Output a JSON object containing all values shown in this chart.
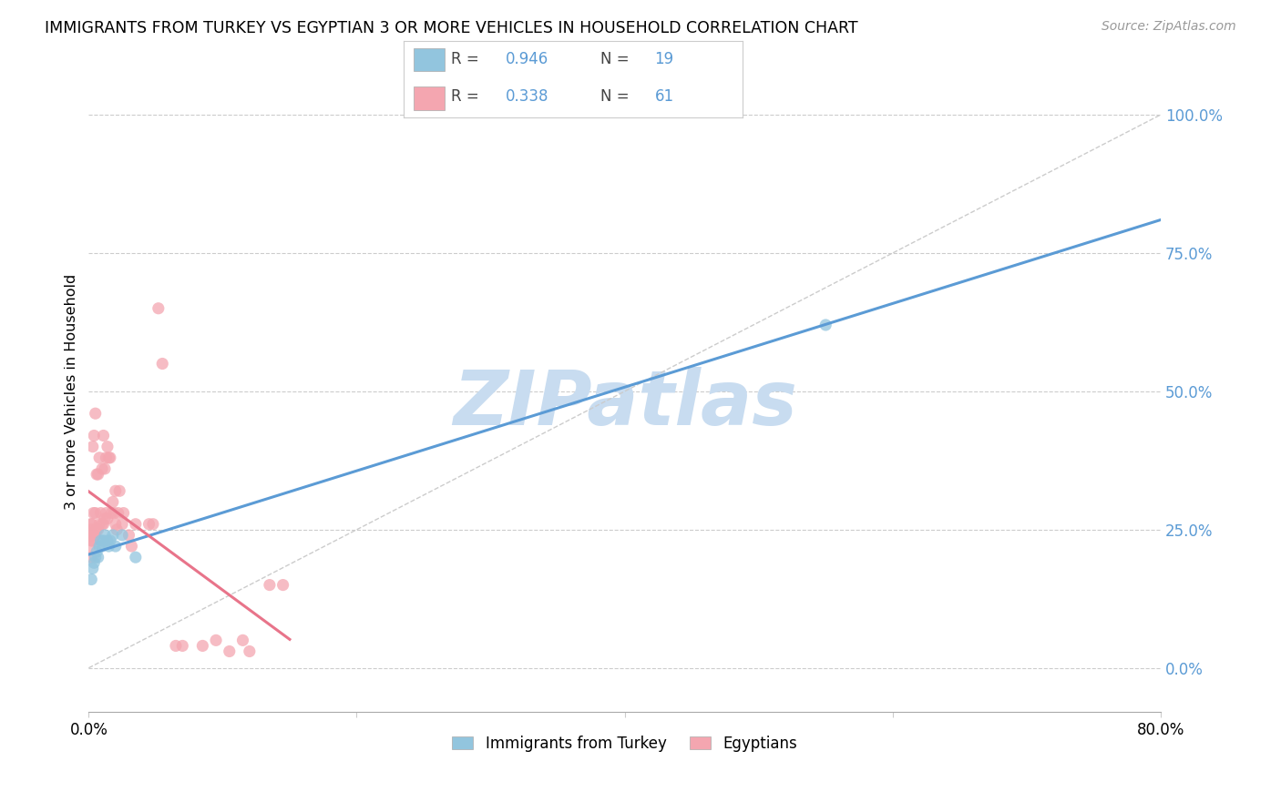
{
  "title": "IMMIGRANTS FROM TURKEY VS EGYPTIAN 3 OR MORE VEHICLES IN HOUSEHOLD CORRELATION CHART",
  "source": "Source: ZipAtlas.com",
  "ylabel": "3 or more Vehicles in Household",
  "y_ticks": [
    0.0,
    25.0,
    50.0,
    75.0,
    100.0
  ],
  "xlim": [
    0.0,
    80.0
  ],
  "ylim": [
    -8.0,
    108.0
  ],
  "turkey_R": 0.946,
  "turkey_N": 19,
  "egypt_R": 0.338,
  "egypt_N": 61,
  "turkey_color": "#92C5DE",
  "egypt_color": "#F4A6B0",
  "turkey_line_color": "#5B9BD5",
  "egypt_line_color": "#E8748A",
  "watermark": "ZIPatlas",
  "watermark_color": "#C8DCF0",
  "turkey_x": [
    0.2,
    0.3,
    0.4,
    0.5,
    0.6,
    0.7,
    0.8,
    0.9,
    1.0,
    1.1,
    1.2,
    1.4,
    1.5,
    1.6,
    1.8,
    2.0,
    2.5,
    3.5,
    55.0
  ],
  "turkey_y": [
    16.0,
    18.0,
    19.0,
    20.0,
    21.0,
    20.0,
    22.0,
    23.0,
    22.0,
    23.0,
    24.0,
    23.0,
    22.0,
    23.0,
    24.0,
    22.0,
    24.0,
    20.0,
    62.0
  ],
  "egypt_x": [
    0.1,
    0.1,
    0.15,
    0.15,
    0.2,
    0.2,
    0.25,
    0.3,
    0.3,
    0.3,
    0.35,
    0.4,
    0.4,
    0.5,
    0.5,
    0.5,
    0.6,
    0.6,
    0.7,
    0.7,
    0.8,
    0.8,
    0.9,
    1.0,
    1.0,
    1.1,
    1.1,
    1.2,
    1.2,
    1.3,
    1.3,
    1.4,
    1.4,
    1.5,
    1.6,
    1.7,
    1.8,
    1.9,
    2.0,
    2.0,
    2.1,
    2.2,
    2.3,
    2.5,
    2.6,
    3.0,
    3.2,
    3.5,
    4.5,
    4.8,
    5.2,
    5.5,
    6.5,
    7.0,
    8.5,
    9.5,
    10.5,
    11.5,
    12.0,
    13.5,
    14.5
  ],
  "egypt_y": [
    22.0,
    24.0,
    20.0,
    26.0,
    23.0,
    25.0,
    26.0,
    23.0,
    24.0,
    40.0,
    28.0,
    24.0,
    42.0,
    24.0,
    28.0,
    46.0,
    25.0,
    35.0,
    25.0,
    35.0,
    26.0,
    38.0,
    28.0,
    26.0,
    36.0,
    26.0,
    42.0,
    27.0,
    36.0,
    28.0,
    38.0,
    27.0,
    40.0,
    38.0,
    38.0,
    28.0,
    30.0,
    28.0,
    26.0,
    32.0,
    25.0,
    28.0,
    32.0,
    26.0,
    28.0,
    24.0,
    22.0,
    26.0,
    26.0,
    26.0,
    65.0,
    55.0,
    4.0,
    4.0,
    4.0,
    5.0,
    3.0,
    5.0,
    3.0,
    15.0,
    15.0
  ]
}
